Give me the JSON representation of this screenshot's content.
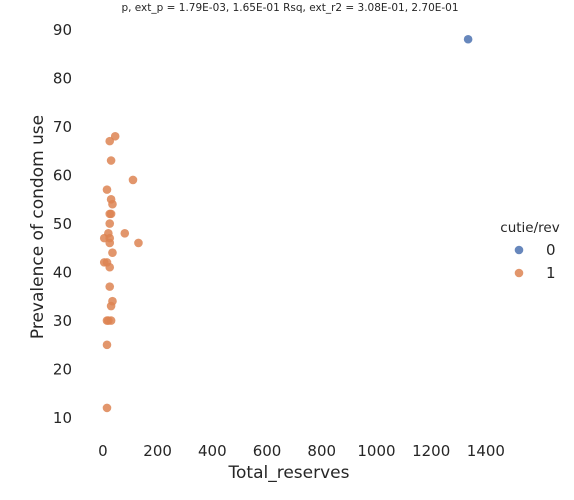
{
  "chart_data": {
    "type": "scatter",
    "title": "p, ext_p = 1.79E-03, 1.65E-01 Rsq, ext_r2 = 3.08E-01, 2.70E-01",
    "xlabel": "Total_reserves",
    "ylabel": "Prevalence of condom use",
    "xlim": [
      -80,
      1510
    ],
    "ylim": [
      6,
      93
    ],
    "xticks": [
      0,
      200,
      400,
      600,
      800,
      1000,
      1200,
      1400
    ],
    "yticks": [
      10,
      20,
      30,
      40,
      50,
      60,
      70,
      80,
      90
    ],
    "grid": false,
    "legend": {
      "title": "cutie/rev",
      "placement": "right"
    },
    "colors": {
      "0": "#4c72b0",
      "1": "#dd8452"
    },
    "series": [
      {
        "name": "0",
        "points": [
          [
            1335,
            88
          ]
        ]
      },
      {
        "name": "1",
        "points": [
          [
            45,
            68
          ],
          [
            25,
            67
          ],
          [
            30,
            63
          ],
          [
            110,
            59
          ],
          [
            15,
            57
          ],
          [
            30,
            55
          ],
          [
            35,
            54
          ],
          [
            25,
            52
          ],
          [
            30,
            52
          ],
          [
            25,
            50
          ],
          [
            20,
            48
          ],
          [
            80,
            48
          ],
          [
            5,
            47
          ],
          [
            25,
            47
          ],
          [
            25,
            46
          ],
          [
            130,
            46
          ],
          [
            35,
            44
          ],
          [
            5,
            42
          ],
          [
            15,
            42
          ],
          [
            25,
            41
          ],
          [
            25,
            37
          ],
          [
            35,
            34
          ],
          [
            30,
            33
          ],
          [
            15,
            30
          ],
          [
            20,
            30
          ],
          [
            30,
            30
          ],
          [
            15,
            25
          ],
          [
            15,
            12
          ]
        ]
      }
    ]
  }
}
